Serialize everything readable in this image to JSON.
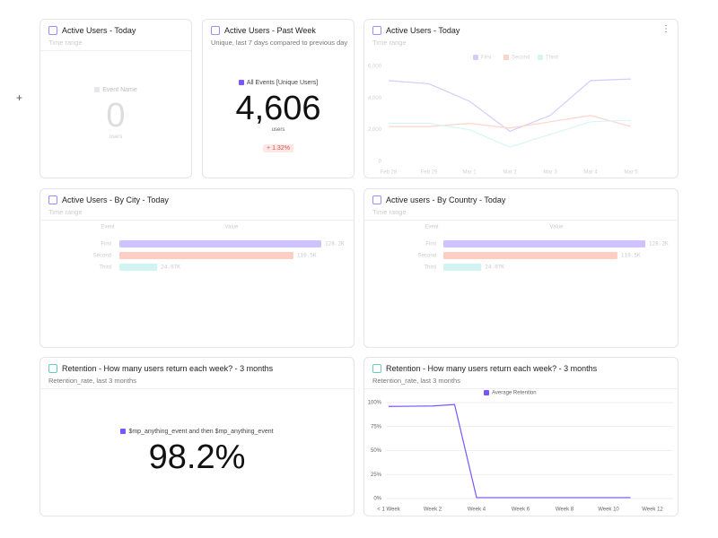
{
  "cards": [
    {
      "title": "Active Users - Today",
      "subtitle": "Time range",
      "legend": "Event Name",
      "value": "0",
      "unit": "users"
    },
    {
      "title": "Active Users - Past Week",
      "subtitle": "Unique, last 7 days compared to previous day",
      "legend": "All Events [Unique Users]",
      "value": "4,606",
      "unit": "users",
      "change": "+ 1.32%"
    },
    {
      "title": "Retention - How many users return each week? - 3 months",
      "subtitle": "Retention_rate, last 3 months",
      "legend": "$mp_anything_event and then $mp_anything_event",
      "value": "98.2%"
    }
  ],
  "chart_data": [
    {
      "type": "line",
      "title": "Active Users - Today",
      "subtitle": "Time range",
      "categories": [
        "Feb 28",
        "Feb 29",
        "Mar 1",
        "Mar 2",
        "Mar 3",
        "Mar 4",
        "Mar 5"
      ],
      "series": [
        {
          "name": "First",
          "color": "#7856ff",
          "values": [
            5100,
            4900,
            3800,
            1900,
            2900,
            5100,
            5200
          ]
        },
        {
          "name": "Second",
          "color": "#ff7557",
          "values": [
            2200,
            2200,
            2400,
            2100,
            2500,
            2900,
            2200
          ]
        },
        {
          "name": "Third",
          "color": "#80e1d9",
          "values": [
            2400,
            2400,
            2000,
            900,
            1700,
            2500,
            2600
          ]
        }
      ],
      "ylim": [
        0,
        6000
      ],
      "yticks": [
        0,
        {
          "value": 2000,
          "label": "2,000"
        },
        {
          "value": 4000,
          "label": "4,000"
        },
        {
          "value": 6000,
          "label": "6,000"
        }
      ],
      "grid": false
    },
    {
      "type": "bar",
      "title": "Active Users - By City - Today",
      "subtitle": "Time range",
      "headers": [
        "Event",
        "Value"
      ],
      "categories": [
        "First",
        "Second",
        "Third"
      ],
      "values": [
        128200,
        110500,
        24070
      ],
      "value_labels": [
        "128.2K",
        "110.5K",
        "24.07K"
      ],
      "colors": [
        "#7856ff",
        "#ff7557",
        "#80e1d9"
      ],
      "xlim": [
        0,
        128200
      ]
    },
    {
      "type": "bar",
      "title": "Active users - By Country - Today",
      "subtitle": "Time range",
      "headers": [
        "Event",
        "Value"
      ],
      "categories": [
        "First",
        "Second",
        "Third"
      ],
      "values": [
        128200,
        110500,
        24070
      ],
      "value_labels": [
        "128.2K",
        "110.5K",
        "24.07K"
      ],
      "colors": [
        "#7856ff",
        "#ff7557",
        "#80e1d9"
      ],
      "xlim": [
        0,
        128200
      ]
    },
    {
      "type": "line",
      "title": "Retention - How many users return each week? - 3 months",
      "subtitle": "Retention_rate, last 3 months",
      "categories": [
        "< 1 Week",
        null,
        "Week 2",
        null,
        "Week 4",
        null,
        "Week 6",
        null,
        "Week 8",
        null,
        "Week 10",
        null,
        "Week 12"
      ],
      "series": [
        {
          "name": "Average Retention",
          "color": "#7856ff",
          "values": [
            96,
            96.2,
            96.5,
            98,
            1,
            1,
            1,
            1,
            1,
            1,
            1,
            1,
            null
          ]
        }
      ],
      "ylim": [
        0,
        100
      ],
      "yticks": [
        {
          "value": 0,
          "label": "0%"
        },
        {
          "value": 25,
          "label": "25%"
        },
        {
          "value": 50,
          "label": "50%"
        },
        {
          "value": 75,
          "label": "75%"
        },
        {
          "value": 100,
          "label": "100%"
        }
      ],
      "grid": true
    }
  ]
}
